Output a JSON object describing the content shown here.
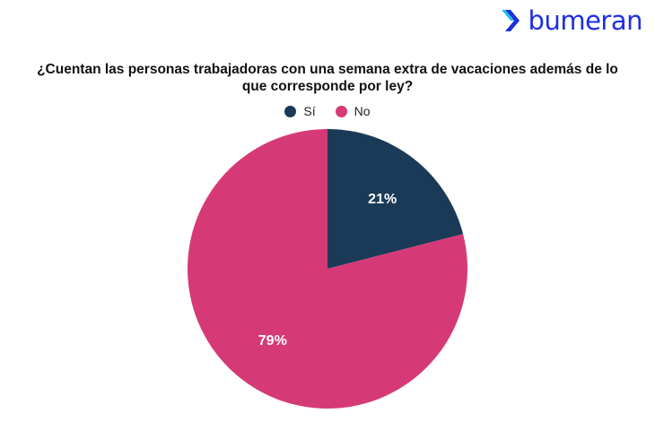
{
  "brand": {
    "name": "bumeran",
    "color": "#1e2fe0"
  },
  "chart_data": {
    "type": "pie",
    "title": "¿Cuentan las personas trabajadoras con una semana extra de vacaciones además de lo que corresponde por ley?",
    "legend_position": "top",
    "slices": [
      {
        "label": "Sí",
        "value": 21,
        "display": "21%",
        "color": "#1b3a57"
      },
      {
        "label": "No",
        "value": 79,
        "display": "79%",
        "color": "#d63a76"
      }
    ]
  }
}
